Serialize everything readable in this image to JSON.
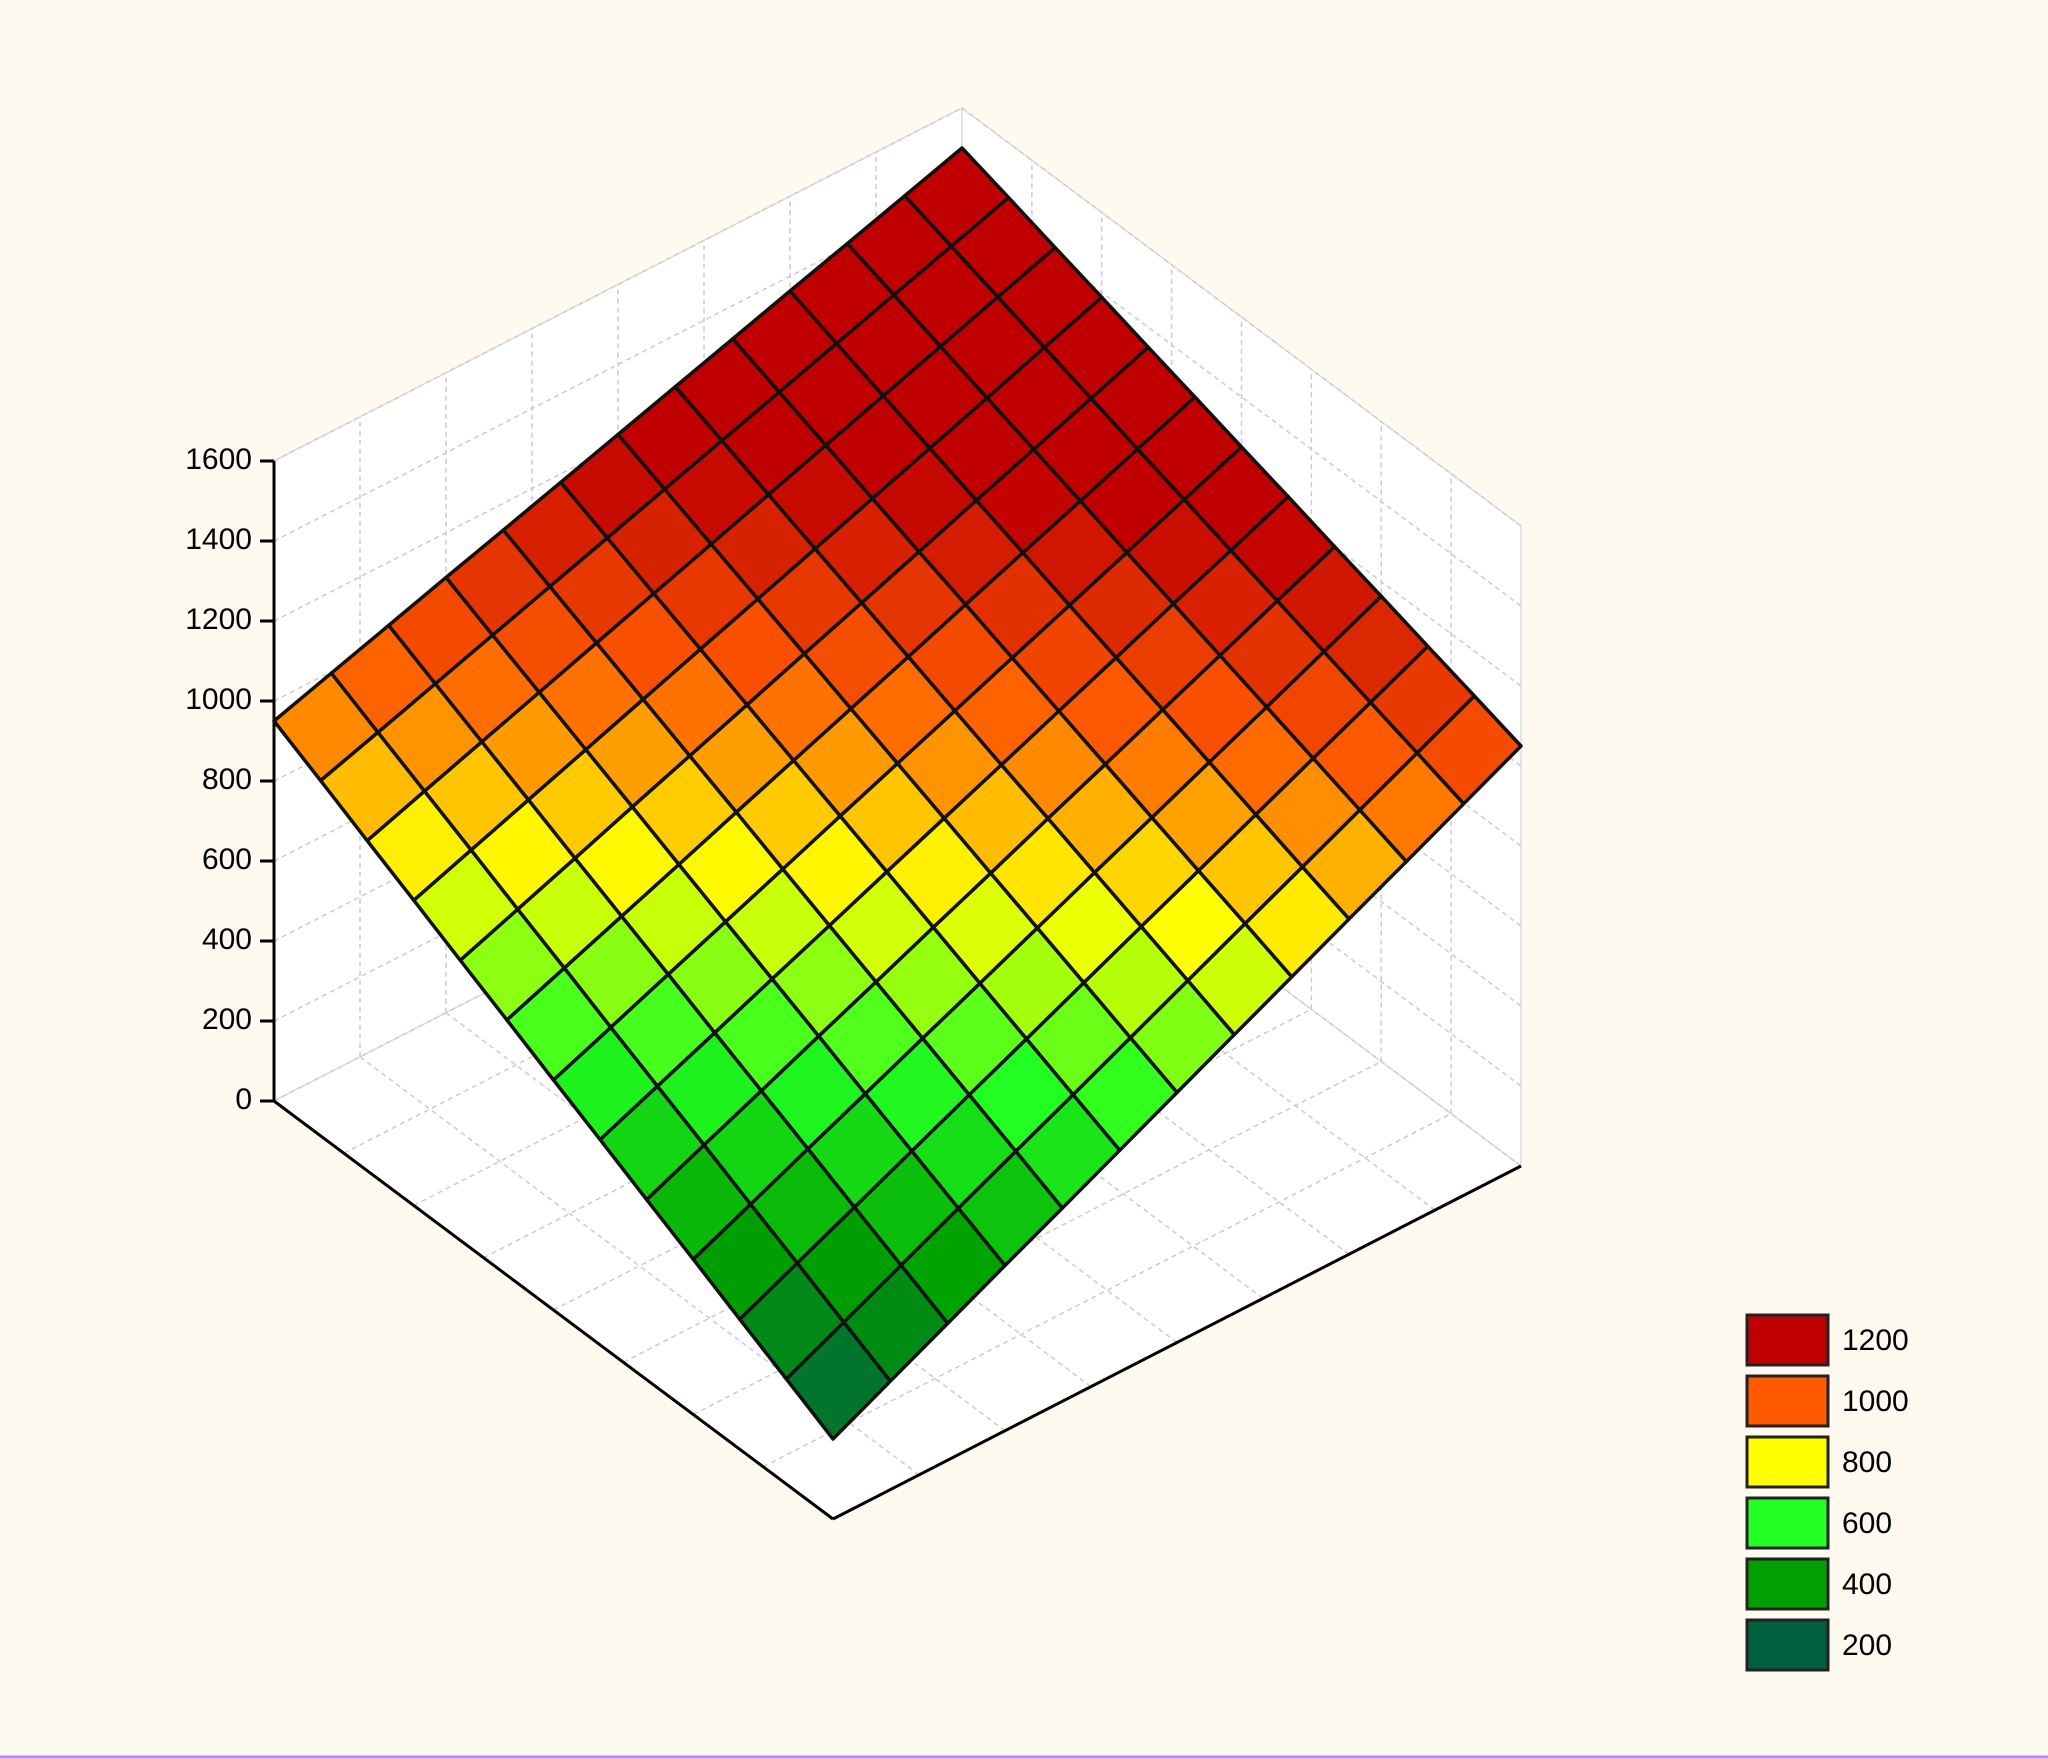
{
  "chart_data": {
    "type": "surface",
    "z": [
      [
        200,
        271,
        342,
        413,
        483,
        554,
        625,
        696,
        767,
        838,
        908,
        979,
        1050
      ],
      [
        263,
        331,
        400,
        469,
        538,
        606,
        675,
        744,
        813,
        881,
        950,
        1019,
        1088
      ],
      [
        325,
        392,
        458,
        525,
        592,
        658,
        725,
        792,
        858,
        925,
        992,
        1058,
        1125
      ],
      [
        388,
        452,
        517,
        581,
        646,
        710,
        775,
        840,
        904,
        969,
        1033,
        1098,
        1163
      ],
      [
        450,
        513,
        575,
        638,
        700,
        763,
        825,
        888,
        950,
        1013,
        1075,
        1138,
        1200
      ],
      [
        513,
        573,
        633,
        694,
        754,
        815,
        875,
        935,
        996,
        1056,
        1117,
        1177,
        1238
      ],
      [
        575,
        633,
        692,
        750,
        808,
        867,
        925,
        983,
        1042,
        1100,
        1158,
        1217,
        1275
      ],
      [
        638,
        694,
        750,
        806,
        863,
        919,
        975,
        1031,
        1088,
        1144,
        1200,
        1256,
        1313
      ],
      [
        700,
        754,
        808,
        863,
        917,
        971,
        1025,
        1079,
        1133,
        1188,
        1242,
        1296,
        1350
      ],
      [
        763,
        815,
        867,
        919,
        971,
        1023,
        1075,
        1127,
        1179,
        1231,
        1283,
        1336,
        1388
      ],
      [
        825,
        875,
        925,
        975,
        1025,
        1075,
        1125,
        1175,
        1225,
        1275,
        1325,
        1375,
        1425
      ],
      [
        888,
        935,
        983,
        1031,
        1079,
        1127,
        1175,
        1223,
        1271,
        1319,
        1367,
        1415,
        1463
      ],
      [
        950,
        996,
        1042,
        1088,
        1133,
        1179,
        1225,
        1271,
        1317,
        1363,
        1408,
        1454,
        1500
      ]
    ],
    "zlim": [
      0,
      1600
    ],
    "zticks": [
      0,
      200,
      400,
      600,
      800,
      1000,
      1200,
      1400,
      1600
    ],
    "legend": [
      {
        "value": 1200,
        "color": "#c00000"
      },
      {
        "value": 1000,
        "color": "#ff5a00"
      },
      {
        "value": 800,
        "color": "#ffff00"
      },
      {
        "value": 600,
        "color": "#22ff22"
      },
      {
        "value": 400,
        "color": "#00a000"
      },
      {
        "value": 200,
        "color": "#006040"
      }
    ]
  }
}
